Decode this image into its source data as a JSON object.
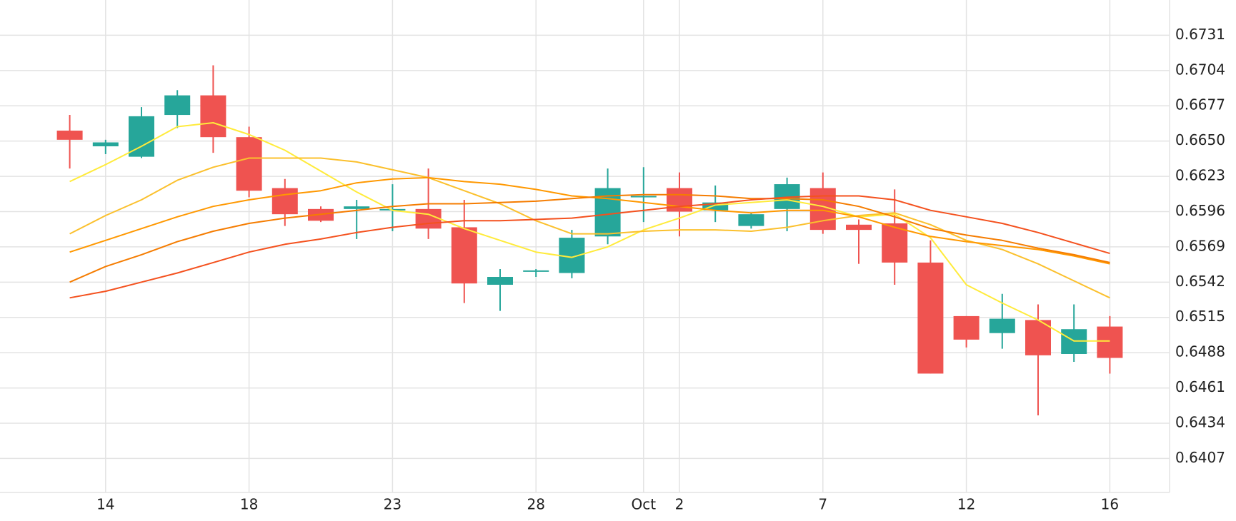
{
  "chart_data": {
    "type": "candlestick",
    "categories": [
      null,
      "14",
      null,
      null,
      null,
      "18",
      null,
      null,
      null,
      "23",
      null,
      null,
      null,
      "28",
      null,
      null,
      "Oct",
      "2",
      null,
      null,
      null,
      "7",
      null,
      null,
      null,
      "12",
      null,
      null,
      null,
      "16"
    ],
    "open": [
      0.6658,
      0.6646,
      0.6638,
      0.667,
      0.6685,
      0.6653,
      0.6614,
      0.6598,
      0.6598,
      0.6597,
      0.6598,
      0.6584,
      0.654,
      0.655,
      0.6549,
      0.6577,
      0.6607,
      0.6614,
      0.6597,
      0.6585,
      0.6598,
      0.6614,
      0.6586,
      0.6587,
      0.6557,
      0.6516,
      0.6503,
      0.6513,
      0.6487,
      0.6508
    ],
    "high": [
      0.667,
      0.6651,
      0.6676,
      0.6689,
      0.6708,
      0.6661,
      0.6621,
      0.66,
      0.6605,
      0.6617,
      0.6629,
      0.6605,
      0.6552,
      0.6552,
      0.6582,
      0.6629,
      0.663,
      0.6626,
      0.6616,
      0.6595,
      0.6622,
      0.6626,
      0.659,
      0.6613,
      0.6574,
      0.6516,
      0.6533,
      0.6525,
      0.6525,
      0.6516
    ],
    "low": [
      0.6629,
      0.664,
      0.6637,
      0.666,
      0.6641,
      0.6607,
      0.6585,
      0.6588,
      0.6575,
      0.6581,
      0.6575,
      0.6526,
      0.652,
      0.6546,
      0.6545,
      0.6571,
      0.6588,
      0.6577,
      0.6588,
      0.6583,
      0.6581,
      0.6579,
      0.6556,
      0.654,
      0.6472,
      0.6492,
      0.6491,
      0.644,
      0.6481,
      0.6472
    ],
    "close": [
      0.6651,
      0.6649,
      0.6669,
      0.6685,
      0.6653,
      0.6612,
      0.6594,
      0.6589,
      0.66,
      0.6598,
      0.6583,
      0.6541,
      0.6546,
      0.6551,
      0.6576,
      0.6614,
      0.6608,
      0.6596,
      0.6603,
      0.6594,
      0.6617,
      0.6582,
      0.6582,
      0.6557,
      0.6472,
      0.6498,
      0.6514,
      0.6486,
      0.6506,
      0.6484
    ],
    "up_color": "#26a69a",
    "down_color": "#ef5350",
    "series": [
      {
        "color": "#ffeb3b",
        "values": [
          0.6619,
          0.6632,
          0.6646,
          0.6661,
          0.6664,
          0.6655,
          0.6643,
          0.6627,
          0.6611,
          0.6597,
          0.6594,
          0.6583,
          0.6574,
          0.6565,
          0.6561,
          0.6569,
          0.6582,
          0.6591,
          0.6601,
          0.6603,
          0.6605,
          0.66,
          0.6592,
          0.6594,
          0.6576,
          0.654,
          0.6526,
          0.6513,
          0.6497,
          0.6497
        ]
      },
      {
        "color": "#fbc02d",
        "values": [
          0.6579,
          0.6593,
          0.6605,
          0.662,
          0.663,
          0.6637,
          0.6637,
          0.6637,
          0.6634,
          0.6628,
          0.6622,
          0.6612,
          0.6602,
          0.6589,
          0.6579,
          0.6579,
          0.6581,
          0.6582,
          0.6582,
          0.6581,
          0.6584,
          0.6589,
          0.6593,
          0.6595,
          0.6586,
          0.6574,
          0.6567,
          0.6556,
          0.6543,
          0.653
        ]
      },
      {
        "color": "#ff9800",
        "values": [
          0.6565,
          0.6574,
          0.6583,
          0.6592,
          0.66,
          0.6605,
          0.6609,
          0.6612,
          0.6618,
          0.6621,
          0.6622,
          0.6619,
          0.6617,
          0.6613,
          0.6608,
          0.6606,
          0.6603,
          0.66,
          0.6597,
          0.6595,
          0.6597,
          0.6597,
          0.6592,
          0.6584,
          0.6577,
          0.6573,
          0.657,
          0.6567,
          0.6562,
          0.6556
        ]
      },
      {
        "color": "#f57c00",
        "values": [
          0.6542,
          0.6554,
          0.6563,
          0.6573,
          0.6581,
          0.6587,
          0.6591,
          0.6594,
          0.6597,
          0.66,
          0.6602,
          0.6602,
          0.6603,
          0.6604,
          0.6606,
          0.6608,
          0.6609,
          0.6609,
          0.6608,
          0.6606,
          0.6606,
          0.6605,
          0.66,
          0.6592,
          0.6583,
          0.6578,
          0.6574,
          0.6568,
          0.6563,
          0.6557
        ]
      },
      {
        "color": "#f4511e",
        "values": [
          0.653,
          0.6535,
          0.6542,
          0.6549,
          0.6557,
          0.6565,
          0.6571,
          0.6575,
          0.658,
          0.6584,
          0.6587,
          0.6589,
          0.6589,
          0.659,
          0.6591,
          0.6594,
          0.6597,
          0.66,
          0.6602,
          0.6605,
          0.6607,
          0.6608,
          0.6608,
          0.6605,
          0.6597,
          0.6592,
          0.6587,
          0.658,
          0.6572,
          0.6564
        ]
      }
    ],
    "ylim": [
      0.6381,
      0.6758
    ],
    "yticks": [
      0.6407,
      0.6434,
      0.6461,
      0.6488,
      0.6515,
      0.6542,
      0.6569,
      0.6596,
      0.6623,
      {
        "value": 0.665,
        "label": "0.6650"
      },
      0.6677,
      0.6704,
      0.6731
    ],
    "grid": true
  }
}
